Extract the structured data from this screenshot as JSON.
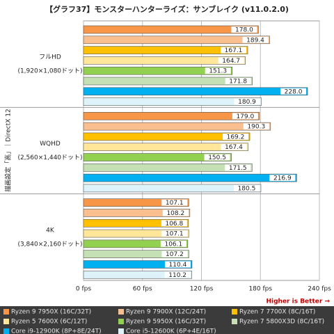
{
  "chart_data": {
    "type": "bar",
    "orientation": "horizontal",
    "title": "【グラフ37】モンスターハンターライズ：サンブレイク (v11.0.2.0)",
    "y_label": "描画設定「高」｜DirectX 12",
    "annotation": "Higher is Better →",
    "categories": [
      [
        "フルHD",
        "(1,920×1,080ドット)"
      ],
      [
        "WQHD",
        "(2,560×1,440ドット)"
      ],
      [
        "4K",
        "(3,840×2,160ドット)"
      ]
    ],
    "xlim": [
      0,
      240
    ],
    "xticks": [
      {
        "value": 0,
        "label": "0 fps"
      },
      {
        "value": 60,
        "label": "60 fps"
      },
      {
        "value": 120,
        "label": "120 fps"
      },
      {
        "value": 180,
        "label": "180 fps"
      },
      {
        "value": 240,
        "label": "240 fps"
      }
    ],
    "grid": true,
    "series": [
      {
        "name": "Ryzen 9 7950X (16C/32T)",
        "color": "#f79646",
        "values": [
          178.0,
          179.0,
          107.1
        ],
        "value_labels": [
          "178.0",
          "179.0",
          "107.1"
        ]
      },
      {
        "name": "Ryzen 9 7900X (12C/24T)",
        "color": "#fabf8f",
        "values": [
          189.4,
          190.3,
          108.2
        ],
        "value_labels": [
          "189.4",
          "190.3",
          "108.2"
        ]
      },
      {
        "name": "Ryzen 7 7700X (8C/16T)",
        "color": "#ffc000",
        "values": [
          167.1,
          169.2,
          106.8
        ],
        "value_labels": [
          "167.1",
          "169.2",
          "106.8"
        ]
      },
      {
        "name": "Ryzen 5 7600X (6C/12T)",
        "color": "#ffe699",
        "values": [
          164.7,
          167.4,
          107.1
        ],
        "value_labels": [
          "164.7",
          "167.4",
          "107.1"
        ]
      },
      {
        "name": "Ryzen 9 5950X (16C/32T)",
        "color": "#92d050",
        "values": [
          151.3,
          150.5,
          106.1
        ],
        "value_labels": [
          "151.3",
          "150.5",
          "106.1"
        ]
      },
      {
        "name": "Ryzen 7 5800X3D (8C/16T)",
        "color": "#c5e0b4",
        "values": [
          171.8,
          171.5,
          107.2
        ],
        "value_labels": [
          "171.8",
          "171.5",
          "107.2"
        ]
      },
      {
        "name": "Core i9-12900K (8P+8E/24T)",
        "color": "#00b0f0",
        "values": [
          228.0,
          216.9,
          110.4
        ],
        "value_labels": [
          "228.0",
          "216.9",
          "110.4"
        ]
      },
      {
        "name": "Core i5-12600K (6P+4E/16T)",
        "color": "#ddf3f9",
        "values": [
          180.9,
          180.5,
          110.2
        ],
        "value_labels": [
          "180.9",
          "180.5",
          "110.2"
        ]
      }
    ]
  }
}
